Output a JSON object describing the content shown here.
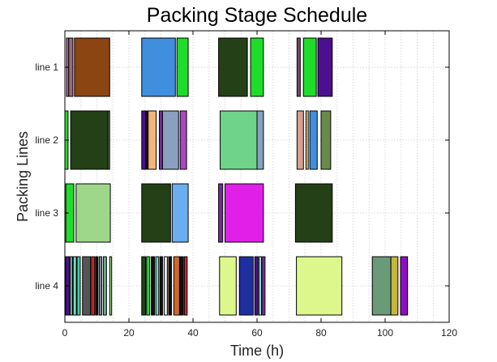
{
  "chart_data": {
    "type": "gantt",
    "title": "Packing Stage Schedule",
    "xlabel": "Time (h)",
    "ylabel": "Packing Lines",
    "xlim": [
      0,
      120
    ],
    "xticks": [
      0,
      20,
      40,
      60,
      80,
      100,
      120
    ],
    "grid": true,
    "lines": [
      "line 1",
      "line 2",
      "line 3",
      "line 4"
    ],
    "tasks": [
      {
        "line": 0,
        "start": 0.5,
        "end": 1.2,
        "color": "#c46ab0"
      },
      {
        "line": 0,
        "start": 1.2,
        "end": 2.5,
        "color": "#9b6a7a"
      },
      {
        "line": 0,
        "start": 3.0,
        "end": 14.0,
        "color": "#8b4513"
      },
      {
        "line": 0,
        "start": 24.0,
        "end": 34.5,
        "color": "#3f8fde"
      },
      {
        "line": 0,
        "start": 35.0,
        "end": 38.5,
        "color": "#1fdc2a"
      },
      {
        "line": 0,
        "start": 48.0,
        "end": 57.0,
        "color": "#244016"
      },
      {
        "line": 0,
        "start": 58.0,
        "end": 62.0,
        "color": "#1fdc2a"
      },
      {
        "line": 0,
        "start": 72.5,
        "end": 73.5,
        "color": "#7a4a6a"
      },
      {
        "line": 0,
        "start": 74.5,
        "end": 78.5,
        "color": "#1fdc2a"
      },
      {
        "line": 0,
        "start": 79.0,
        "end": 83.5,
        "color": "#4b108e"
      },
      {
        "line": 1,
        "start": 0.0,
        "end": 1.0,
        "color": "#1fdc2a"
      },
      {
        "line": 1,
        "start": 1.8,
        "end": 13.5,
        "color": "#244016"
      },
      {
        "line": 1,
        "start": 13.5,
        "end": 14.0,
        "color": "#6a9a4a"
      },
      {
        "line": 1,
        "start": 24.0,
        "end": 25.2,
        "color": "#4b108e"
      },
      {
        "line": 1,
        "start": 25.3,
        "end": 26.0,
        "color": "#1a1a1a"
      },
      {
        "line": 1,
        "start": 26.0,
        "end": 28.5,
        "color": "#f5b57a"
      },
      {
        "line": 1,
        "start": 29.5,
        "end": 30.5,
        "color": "#7a2a9a"
      },
      {
        "line": 1,
        "start": 30.5,
        "end": 35.5,
        "color": "#8aa0c0"
      },
      {
        "line": 1,
        "start": 36.0,
        "end": 38.0,
        "color": "#a84ac0"
      },
      {
        "line": 1,
        "start": 48.5,
        "end": 60.0,
        "color": "#6fd48a"
      },
      {
        "line": 1,
        "start": 60.0,
        "end": 62.0,
        "color": "#8aa0c0"
      },
      {
        "line": 1,
        "start": 72.5,
        "end": 74.5,
        "color": "#d8a090"
      },
      {
        "line": 1,
        "start": 75.3,
        "end": 76.0,
        "color": "#e8c87a"
      },
      {
        "line": 1,
        "start": 76.5,
        "end": 78.8,
        "color": "#3f8fde"
      },
      {
        "line": 1,
        "start": 80.0,
        "end": 83.0,
        "color": "#6a8a4a"
      },
      {
        "line": 2,
        "start": 0.3,
        "end": 2.8,
        "color": "#1fdc2a"
      },
      {
        "line": 2,
        "start": 3.5,
        "end": 14.2,
        "color": "#9ed68a"
      },
      {
        "line": 2,
        "start": 24.0,
        "end": 33.0,
        "color": "#244016"
      },
      {
        "line": 2,
        "start": 33.5,
        "end": 38.5,
        "color": "#6aaef0"
      },
      {
        "line": 2,
        "start": 48.0,
        "end": 49.3,
        "color": "#7a2a9a"
      },
      {
        "line": 2,
        "start": 50.0,
        "end": 62.0,
        "color": "#e020e8"
      },
      {
        "line": 2,
        "start": 72.0,
        "end": 83.5,
        "color": "#244016"
      },
      {
        "line": 3,
        "start": 0.2,
        "end": 1.4,
        "color": "#4b108e"
      },
      {
        "line": 3,
        "start": 1.6,
        "end": 2.4,
        "color": "#6aa88a"
      },
      {
        "line": 3,
        "start": 2.6,
        "end": 3.6,
        "color": "#7ad8c0"
      },
      {
        "line": 3,
        "start": 3.8,
        "end": 4.8,
        "color": "#4acaa8"
      },
      {
        "line": 3,
        "start": 5.5,
        "end": 8.0,
        "color": "#555555"
      },
      {
        "line": 3,
        "start": 8.3,
        "end": 9.3,
        "color": "#cc2a2a"
      },
      {
        "line": 3,
        "start": 9.6,
        "end": 10.3,
        "color": "#111111"
      },
      {
        "line": 3,
        "start": 10.7,
        "end": 11.5,
        "color": "#7a8a9a"
      },
      {
        "line": 3,
        "start": 12.0,
        "end": 13.0,
        "color": "#6aa88a"
      },
      {
        "line": 3,
        "start": 14.0,
        "end": 14.6,
        "color": "#9ed68a"
      },
      {
        "line": 3,
        "start": 24.0,
        "end": 25.2,
        "color": "#244016"
      },
      {
        "line": 3,
        "start": 25.5,
        "end": 26.5,
        "color": "#1fdc2a"
      },
      {
        "line": 3,
        "start": 27.0,
        "end": 28.0,
        "color": "#111111"
      },
      {
        "line": 3,
        "start": 28.4,
        "end": 29.3,
        "color": "#7ad8c0"
      },
      {
        "line": 3,
        "start": 29.7,
        "end": 30.5,
        "color": "#111111"
      },
      {
        "line": 3,
        "start": 31.0,
        "end": 32.0,
        "color": "#e8e8e8"
      },
      {
        "line": 3,
        "start": 32.4,
        "end": 33.3,
        "color": "#111111"
      },
      {
        "line": 3,
        "start": 34.0,
        "end": 35.8,
        "color": "#cc6a2a"
      },
      {
        "line": 3,
        "start": 36.0,
        "end": 37.0,
        "color": "#111111"
      },
      {
        "line": 3,
        "start": 37.3,
        "end": 38.2,
        "color": "#cc2a2a"
      },
      {
        "line": 3,
        "start": 48.3,
        "end": 53.5,
        "color": "#def78c"
      },
      {
        "line": 3,
        "start": 54.5,
        "end": 58.8,
        "color": "#1f2fa0"
      },
      {
        "line": 3,
        "start": 59.3,
        "end": 60.3,
        "color": "#4b108e"
      },
      {
        "line": 3,
        "start": 60.6,
        "end": 61.4,
        "color": "#9ed6f0"
      },
      {
        "line": 3,
        "start": 61.7,
        "end": 62.5,
        "color": "#8a2ac0"
      },
      {
        "line": 3,
        "start": 72.3,
        "end": 86.5,
        "color": "#def78c"
      },
      {
        "line": 3,
        "start": 96.0,
        "end": 101.8,
        "color": "#6a9a78"
      },
      {
        "line": 3,
        "start": 101.8,
        "end": 104.0,
        "color": "#c8b43a"
      },
      {
        "line": 3,
        "start": 104.8,
        "end": 107.0,
        "color": "#8a10c0"
      }
    ]
  }
}
